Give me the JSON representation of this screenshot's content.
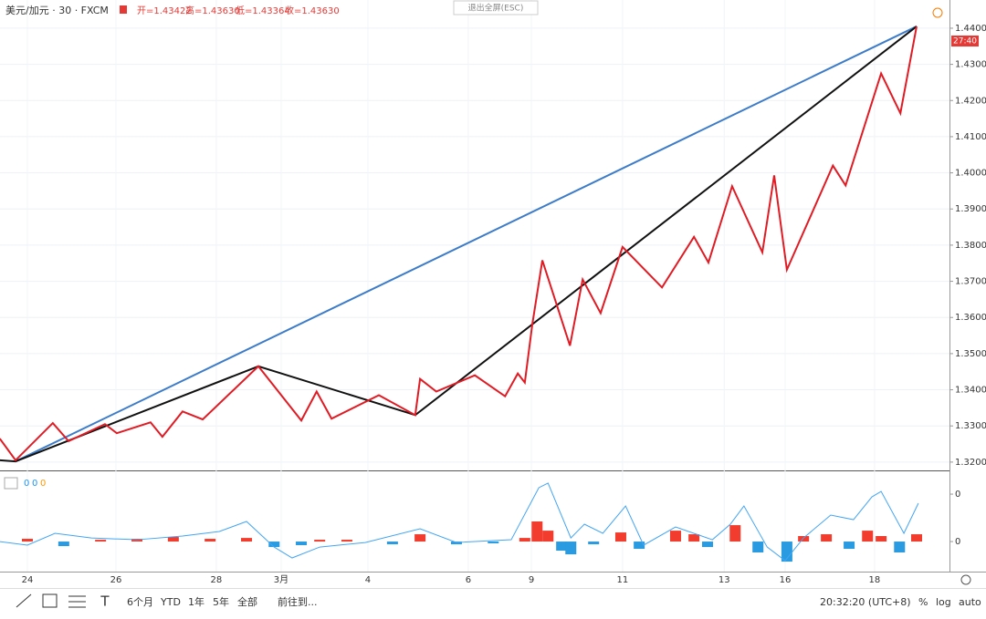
{
  "header": {
    "symbol": "美元/加元 · 30 · FXCM",
    "open": "开=1.43422",
    "high": "高=1.43630",
    "low": "低=1.43364",
    "close": "收=1.43630",
    "exit": "退出全屏(ESC)",
    "price_tag": "27:40"
  },
  "toolbar": {
    "ranges": [
      "6个月",
      "YTD",
      "1年",
      "5年",
      "全部"
    ],
    "goto": "前往到...",
    "clock": "20:32:20 (UTC+8)",
    "percent": "%",
    "log": "log",
    "auto": "auto"
  },
  "macd_legend": [
    {
      "label": "0",
      "color": "#2196f3"
    },
    {
      "label": "0",
      "color": "#2196f3"
    },
    {
      "label": "0",
      "color": "#ff9800"
    }
  ],
  "chart_data": [
    {
      "type": "line",
      "xlim": [
        -0.625,
        21.04
      ],
      "ylim": [
        1.3177,
        1.4478
      ],
      "xticks": [
        {
          "value": 0,
          "label": "24"
        },
        {
          "value": 2.02,
          "label": "26"
        },
        {
          "value": 4.31,
          "label": "28"
        },
        {
          "value": 5.79,
          "label": "3月"
        },
        {
          "value": 7.77,
          "label": "4"
        },
        {
          "value": 10.06,
          "label": "6"
        },
        {
          "value": 11.5,
          "label": "9"
        },
        {
          "value": 13.58,
          "label": "11"
        },
        {
          "value": 15.9,
          "label": "13"
        },
        {
          "value": 17.29,
          "label": "16"
        },
        {
          "value": 19.33,
          "label": "18"
        }
      ],
      "yticks": [
        {
          "value": 1.44,
          "label": "1.44000"
        },
        {
          "value": 1.43,
          "label": "1.43000"
        },
        {
          "value": 1.42,
          "label": "1.42000"
        },
        {
          "value": 1.41,
          "label": "1.41000"
        },
        {
          "value": 1.4,
          "label": "1.40000"
        },
        {
          "value": 1.39,
          "label": "1.39000"
        },
        {
          "value": 1.38,
          "label": "1.38000"
        },
        {
          "value": 1.37,
          "label": "1.37000"
        },
        {
          "value": 1.36,
          "label": "1.36000"
        },
        {
          "value": 1.35,
          "label": "1.35000"
        },
        {
          "value": 1.34,
          "label": "1.34000"
        },
        {
          "value": 1.33,
          "label": "1.33000"
        },
        {
          "value": 1.32,
          "label": "1.32000"
        }
      ],
      "grid": true,
      "series": [
        {
          "color": "#3d7cc9",
          "x": [
            -0.27,
            20.29
          ],
          "values": [
            1.3202,
            1.4405
          ]
        },
        {
          "color": "#111111",
          "x": [
            -0.63,
            -0.27,
            5.27,
            8.85,
            20.29
          ],
          "values": [
            1.3205,
            1.3202,
            1.3465,
            1.333,
            1.4405
          ]
        },
        {
          "color": "#e01b24",
          "x": [
            -0.63,
            -0.27,
            0.58,
            0.94,
            1.77,
            2.04,
            2.81,
            3.08,
            3.54,
            4.0,
            5.27,
            6.25,
            6.6,
            6.94,
            8.02,
            8.85,
            8.96,
            9.33,
            10.21,
            10.9,
            11.19,
            11.35,
            11.52,
            11.75,
            12.38,
            12.67,
            13.08,
            13.58,
            14.48,
            15.21,
            15.54,
            16.08,
            16.77,
            17.04,
            17.33,
            18.38,
            18.67,
            19.48,
            19.92,
            20.29
          ],
          "values": [
            1.3265,
            1.3205,
            1.3308,
            1.3258,
            1.3305,
            1.328,
            1.331,
            1.327,
            1.334,
            1.3318,
            1.3465,
            1.3315,
            1.3395,
            1.332,
            1.3385,
            1.333,
            1.343,
            1.3395,
            1.344,
            1.3382,
            1.3445,
            1.342,
            1.358,
            1.3758,
            1.3522,
            1.3705,
            1.3612,
            1.3795,
            1.3683,
            1.3823,
            1.3752,
            1.3963,
            1.378,
            1.3993,
            1.3732,
            1.402,
            1.3965,
            1.4275,
            1.4165,
            1.4405
          ]
        }
      ]
    },
    {
      "type": "bar",
      "xlim": [
        -0.625,
        21.04
      ],
      "ylim": [
        -0.00317,
        0.00712
      ],
      "yticks": [
        {
          "value": 0.005,
          "label": "0"
        },
        0
      ],
      "color": "#f23d2e",
      "negative_color": "#2a9be0",
      "x": [
        0,
        0.83,
        1.67,
        2.5,
        3.33,
        4.17,
        5,
        5.63,
        6.25,
        6.67,
        7.29,
        8.33,
        8.96,
        9.79,
        10.63,
        11.35,
        11.63,
        11.88,
        12.19,
        12.4,
        12.92,
        13.54,
        13.96,
        14.79,
        15.21,
        15.52,
        16.15,
        16.67,
        17.33,
        17.71,
        18.23,
        18.75,
        19.17,
        19.48,
        19.9,
        20.29
      ],
      "values": [
        0.00029,
        -0.00048,
        0.00019,
        0.00029,
        0.00048,
        0.00029,
        0.00038,
        -0.00058,
        -0.00038,
        0.00019,
        0.00019,
        -0.00029,
        0.00077,
        -0.00029,
        -0.00019,
        0.00038,
        0.00212,
        0.00115,
        -0.00096,
        -0.00135,
        -0.00029,
        0.00096,
        -0.00077,
        0.00115,
        0.00077,
        -0.00058,
        0.00173,
        -0.00115,
        -0.00212,
        0.00058,
        0.00077,
        -0.00077,
        0.00115,
        0.00058,
        -0.00115,
        0.00077
      ],
      "line": {
        "color": "#42a5f5",
        "x": [
          -0.63,
          0,
          0.63,
          1.46,
          2.5,
          3.54,
          4.38,
          5,
          5.63,
          6.04,
          6.67,
          7.71,
          8.96,
          9.79,
          11.04,
          11.67,
          11.88,
          12.4,
          12.71,
          13.13,
          13.65,
          14.06,
          14.79,
          15.63,
          16.04,
          16.35,
          16.88,
          17.29,
          17.71,
          18.33,
          18.85,
          19.27,
          19.48,
          20,
          20.33
        ],
        "values": [
          0,
          -0.00038,
          0.00087,
          0.00038,
          0.00019,
          0.00058,
          0.00106,
          0.00212,
          -0.00058,
          -0.00173,
          -0.00058,
          -0.0001,
          0.00135,
          -0.0001,
          0.00019,
          0.00568,
          0.00616,
          0.00038,
          0.00183,
          0.00087,
          0.00375,
          -0.00038,
          0.00154,
          0.00019,
          0.00183,
          0.00375,
          -0.00058,
          -0.00202,
          0.00038,
          0.00279,
          0.00231,
          0.00471,
          0.00529,
          0.00087,
          0.00404
        ]
      }
    }
  ]
}
